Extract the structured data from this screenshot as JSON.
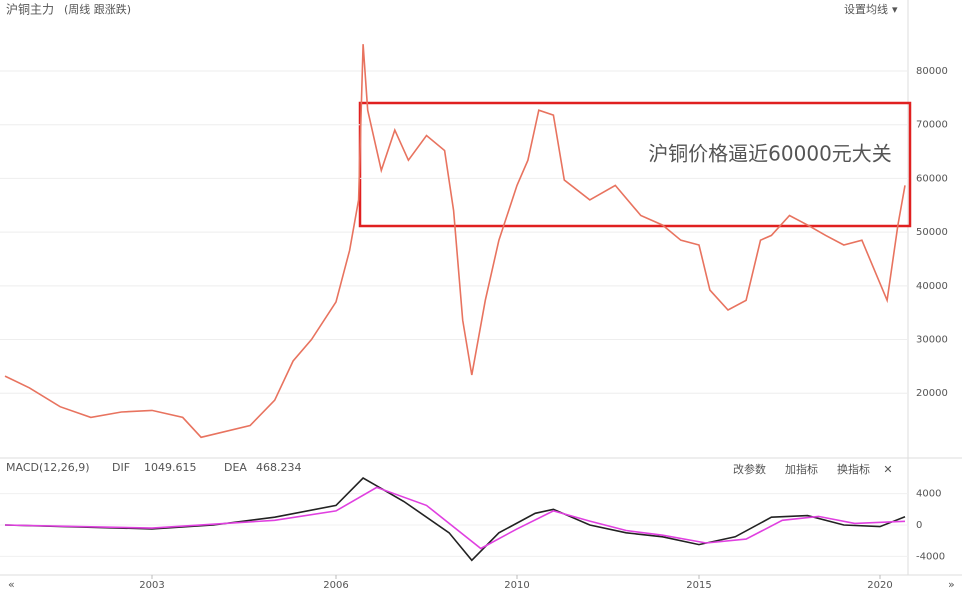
{
  "chart_data": {
    "type": "line",
    "title": "沪铜主力",
    "subtitle": "(周线 跟涨跌)",
    "menu": "设置均线",
    "annotation": "沪铜价格逼近60000元大关",
    "x": [
      2000.6,
      2001,
      2001.5,
      2002,
      2002.5,
      2003,
      2003.5,
      2003.8,
      2004.6,
      2005,
      2005.3,
      2005.6,
      2006,
      2006.3,
      2006.5,
      2006.6,
      2006.7,
      2007,
      2007.3,
      2007.6,
      2008,
      2008.4,
      2008.6,
      2008.8,
      2009,
      2009.3,
      2009.6,
      2010,
      2010.3,
      2010.6,
      2011,
      2011.3,
      2012,
      2012.7,
      2013.4,
      2014,
      2014.5,
      2015,
      2015.3,
      2015.8,
      2016.3,
      2016.7,
      2017,
      2017.5,
      2018,
      2018.5,
      2019,
      2019.5,
      2020.2,
      2020.5,
      2020.7
    ],
    "series": [
      {
        "name": "沪铜主力",
        "color": "#e8735f",
        "values": [
          23200,
          21000,
          17500,
          15500,
          16500,
          16800,
          15500,
          11800,
          14000,
          18700,
          26000,
          30000,
          37000,
          46600,
          56000,
          85000,
          72700,
          61500,
          69000,
          63400,
          68000,
          65200,
          54000,
          33600,
          23400,
          37300,
          48500,
          58700,
          63400,
          72700,
          71800,
          59700,
          56000,
          58700,
          53100,
          51300,
          48500,
          47600,
          39200,
          35500,
          37300,
          48500,
          49400,
          53100,
          51300,
          49400,
          47600,
          48500,
          37300,
          51300,
          58700
        ]
      }
    ],
    "xlim": [
      2000.6,
      2020.7
    ],
    "xticks": [
      2003,
      2006,
      2010,
      2015,
      2020
    ],
    "ylim": [
      8500,
      89500
    ],
    "yticks": [
      20000,
      30000,
      40000,
      50000,
      60000,
      70000,
      80000
    ],
    "grid": true,
    "indicator": {
      "title": "MACD(12,26,9)",
      "buttons": [
        "改参数",
        "加指标",
        "换指标"
      ],
      "ylim": [
        -6000,
        6000
      ],
      "yticks": [
        -4000,
        0,
        4000
      ],
      "series": [
        {
          "name": "DIF",
          "color": "#222222",
          "value_label": "1049.615",
          "x": [
            2000.6,
            2003,
            2004,
            2005,
            2006,
            2006.6,
            2007.5,
            2008.5,
            2009,
            2009.6,
            2010.5,
            2011,
            2012,
            2013,
            2014,
            2015,
            2016,
            2017,
            2018,
            2019,
            2020,
            2020.7
          ],
          "values": [
            0,
            -500,
            0,
            1000,
            2500,
            6000,
            3000,
            -1000,
            -4500,
            -1000,
            1500,
            2000,
            0,
            -1000,
            -1500,
            -2500,
            -1500,
            1000,
            1200,
            0,
            -200,
            1049.615
          ]
        },
        {
          "name": "DEA",
          "color": "#e040e0",
          "value_label": "468.234",
          "x": [
            2000.6,
            2003,
            2005,
            2006,
            2006.9,
            2008,
            2009.2,
            2010,
            2011,
            2012,
            2013,
            2014,
            2015.2,
            2016.3,
            2017.3,
            2018.3,
            2019.3,
            2020.7
          ],
          "values": [
            0,
            -400,
            600,
            1800,
            4800,
            2500,
            -3000,
            -500,
            1800,
            500,
            -700,
            -1300,
            -2300,
            -1800,
            600,
            1100,
            200,
            468.234
          ]
        }
      ]
    }
  }
}
